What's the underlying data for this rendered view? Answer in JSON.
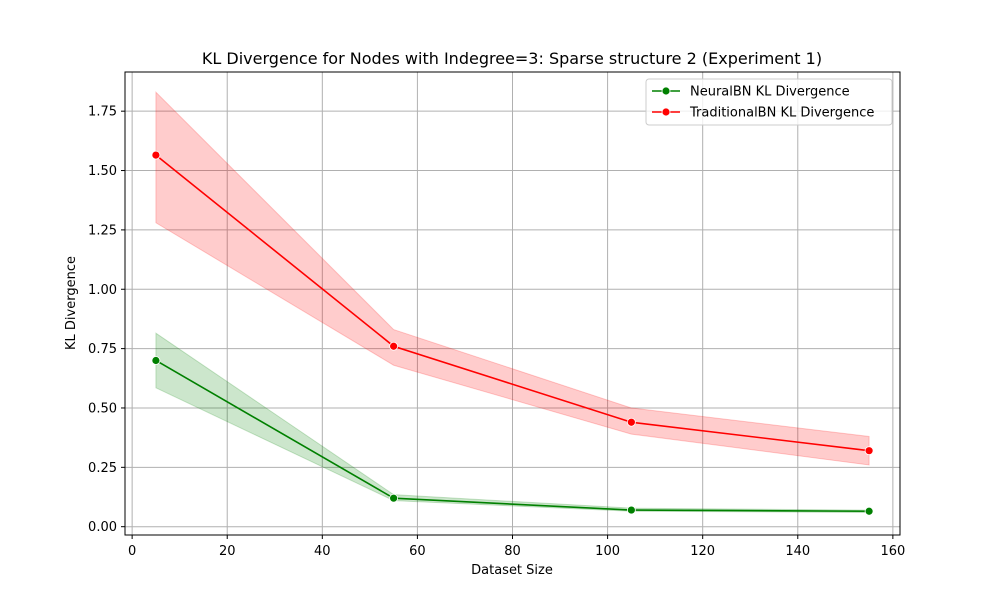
{
  "chart_data": {
    "type": "line",
    "title": "KL Divergence for Nodes with Indegree=3: Sparse structure 2 (Experiment 1)",
    "xlabel": "Dataset Size",
    "ylabel": "KL Divergence",
    "xlim": [
      -1.5,
      161.5
    ],
    "ylim": [
      -0.035,
      1.915
    ],
    "xticks": [
      0,
      20,
      40,
      60,
      80,
      100,
      120,
      140,
      160
    ],
    "yticks": [
      0.0,
      0.25,
      0.5,
      0.75,
      1.0,
      1.25,
      1.5,
      1.75
    ],
    "ytick_labels": [
      "0.00",
      "0.25",
      "0.50",
      "0.75",
      "1.00",
      "1.25",
      "1.50",
      "1.75"
    ],
    "grid": true,
    "legend_position": "top-right",
    "x": [
      5,
      55,
      105,
      155
    ],
    "series": [
      {
        "name": "NeuralBN KL Divergence",
        "color": "#008000",
        "values": [
          0.7,
          0.12,
          0.07,
          0.065
        ],
        "lower": [
          0.585,
          0.11,
          0.065,
          0.06
        ],
        "upper": [
          0.815,
          0.135,
          0.078,
          0.07
        ]
      },
      {
        "name": "TraditionalBN KL Divergence",
        "color": "#ff0000",
        "values": [
          1.565,
          0.76,
          0.44,
          0.32
        ],
        "lower": [
          1.28,
          0.68,
          0.39,
          0.26
        ],
        "upper": [
          1.83,
          0.83,
          0.5,
          0.38
        ]
      }
    ]
  }
}
